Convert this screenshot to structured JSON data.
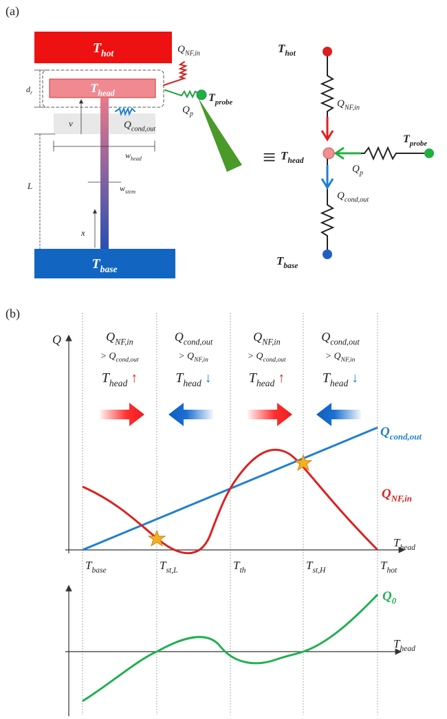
{
  "panel_a": {
    "label": "(a)",
    "hot": {
      "main": "T",
      "sub": "hot"
    },
    "head": {
      "main": "T",
      "sub": "head"
    },
    "base": {
      "main": "T",
      "sub": "base"
    },
    "probe": {
      "main": "T",
      "sub": "probe"
    },
    "q_nf_in": {
      "main": "Q",
      "sub": "NF,in"
    },
    "q_p": {
      "main": "Q",
      "sub": "p"
    },
    "q_cond_out": {
      "main": "Q",
      "sub": "cond,out"
    },
    "d_r": {
      "main": "d",
      "sub": "r"
    },
    "v": "v",
    "w_head": {
      "main": "w",
      "sub": "head"
    },
    "w_stem": {
      "main": "w",
      "sub": "stem"
    },
    "L": "L",
    "x": "x",
    "equiv": "≡"
  },
  "circuit": {
    "hot": {
      "main": "T",
      "sub": "hot"
    },
    "head": {
      "main": "T",
      "sub": "head"
    },
    "base": {
      "main": "T",
      "sub": "base"
    },
    "probe": {
      "main": "T",
      "sub": "probe"
    },
    "q_nf_in": {
      "main": "Q",
      "sub": "NF,in"
    },
    "q_p": {
      "main": "Q",
      "sub": "p"
    },
    "q_cond_out": {
      "main": "Q",
      "sub": "cond,out"
    }
  },
  "panel_b": {
    "label": "(b)",
    "y_label": "Q",
    "x_label": {
      "main": "T",
      "sub": "head"
    },
    "ticks": [
      {
        "main": "T",
        "sub": "base"
      },
      {
        "main": "T",
        "sub": "st,L"
      },
      {
        "main": "T",
        "sub": "th"
      },
      {
        "main": "T",
        "sub": "st,H"
      },
      {
        "main": "T",
        "sub": "hot"
      }
    ],
    "columns": [
      {
        "top": {
          "main": "Q",
          "sub": "NF,in"
        },
        "cmp": {
          "prefix": ">",
          "main": "Q",
          "sub": "cond,out"
        },
        "trend": {
          "main": "T",
          "sub": "head",
          "arrow": "↑",
          "color": "#e02020"
        }
      },
      {
        "top": {
          "main": "Q",
          "sub": "cond,out"
        },
        "cmp": {
          "prefix": ">",
          "main": "Q",
          "sub": "NF,in"
        },
        "trend": {
          "main": "T",
          "sub": "head",
          "arrow": "↓",
          "color": "#1f7fd0"
        }
      },
      {
        "top": {
          "main": "Q",
          "sub": "NF,in"
        },
        "cmp": {
          "prefix": ">",
          "main": "Q",
          "sub": "cond,out"
        },
        "trend": {
          "main": "T",
          "sub": "head",
          "arrow": "↑",
          "color": "#e02020"
        }
      },
      {
        "top": {
          "main": "Q",
          "sub": "cond,out"
        },
        "cmp": {
          "prefix": ">",
          "main": "Q",
          "sub": "NF,in"
        },
        "trend": {
          "main": "T",
          "sub": "head",
          "arrow": "↓",
          "color": "#1f7fd0"
        }
      }
    ],
    "cond_label": {
      "main": "Q",
      "sub": "cond,out"
    },
    "nf_label": {
      "main": "Q",
      "sub": "NF,in"
    },
    "lower_x_label": {
      "main": "T",
      "sub": "head"
    },
    "q0_label": {
      "main": "Q",
      "sub": "0"
    }
  }
}
